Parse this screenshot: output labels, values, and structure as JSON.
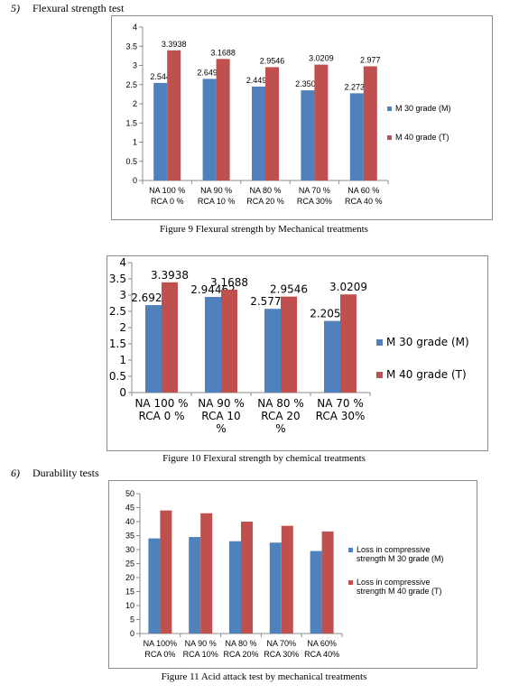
{
  "section5": {
    "num": "5)",
    "text": "Flexural strength test"
  },
  "section6": {
    "num": "6)",
    "text": "Durability tests"
  },
  "colors": {
    "series_m": "#4f81bd",
    "series_t": "#c0504d",
    "grid": "#8c8c8c"
  },
  "figures": [
    {
      "caption": "Figure 9 Flexural strength by Mechanical treatments"
    },
    {
      "caption": "Figure 10 Flexural strength by chemical treatments"
    },
    {
      "caption": "Figure 11 Acid attack test by mechanical treatments"
    }
  ],
  "chart_data": [
    {
      "type": "bar",
      "title": "",
      "categories": [
        [
          "NA 100 %",
          "RCA 0 %"
        ],
        [
          "NA 90 %",
          "RCA 10 %"
        ],
        [
          "NA 80 %",
          "RCA 20 %"
        ],
        [
          "NA 70 %",
          "RCA 30%"
        ],
        [
          "NA 60 %",
          "RCA 40 %"
        ]
      ],
      "series": [
        {
          "name": "M 30 grade (M)",
          "values": [
            2.544,
            2.6496,
            2.4492,
            2.3504,
            2.2739
          ],
          "labels": [
            "2.544",
            "2.6496",
            "2.4492",
            "2.3504",
            "2.2739"
          ]
        },
        {
          "name": "M 40 grade (T)",
          "values": [
            3.3938,
            3.1688,
            2.9546,
            3.0209,
            2.977
          ],
          "labels": [
            "3.3938",
            "3.1688",
            "2.9546",
            "3.0209",
            "2.977"
          ]
        }
      ],
      "ylim": [
        0,
        4
      ],
      "yticks": [
        "0",
        "0.5",
        "1",
        "1.5",
        "2",
        "2.5",
        "3",
        "3.5",
        "4"
      ],
      "legend": "right"
    },
    {
      "type": "bar",
      "title": "",
      "categories": [
        [
          "NA 100 %",
          "RCA 0 %"
        ],
        [
          "NA 90 %",
          "RCA 10",
          "%"
        ],
        [
          "NA 80 %",
          "RCA 20",
          "%"
        ],
        [
          "NA 70 %",
          "RCA 30%"
        ]
      ],
      "series": [
        {
          "name": "M 30 grade (M)",
          "values": [
            2.69216,
            2.94462,
            2.57744,
            2.20528
          ],
          "labels": [
            "2.69216",
            "2.94462",
            "2.57744",
            "2.20528"
          ]
        },
        {
          "name": "M 40 grade (T)",
          "values": [
            3.3938,
            3.1688,
            2.9546,
            3.0209
          ],
          "labels": [
            "3.3938",
            "3.1688",
            "2.9546",
            "3.0209"
          ]
        }
      ],
      "ylim": [
        0,
        4
      ],
      "yticks": [
        "0",
        "0.5",
        "1",
        "1.5",
        "2",
        "2.5",
        "3",
        "3.5",
        "4"
      ],
      "legend": "right"
    },
    {
      "type": "bar",
      "title": "",
      "categories": [
        [
          "NA 100%",
          "RCA 0%"
        ],
        [
          "NA 90 %",
          "RCA 10%"
        ],
        [
          "NA 80 %",
          "RCA 20%"
        ],
        [
          "NA 70%",
          "RCA 30%"
        ],
        [
          "NA 60%",
          "RCA 40%"
        ]
      ],
      "series": [
        {
          "name": "Loss in compressive strength M 30 grade (M)",
          "name_lines": [
            "Loss in compressive",
            "strength M 30 grade (M)"
          ],
          "values": [
            34,
            34.5,
            33,
            32.5,
            29.5
          ]
        },
        {
          "name": "Loss in compressive strength M 40 grade (T)",
          "name_lines": [
            "Loss in compressive",
            "strength M 40 grade (T)"
          ],
          "values": [
            44,
            43,
            40,
            38.5,
            36.5
          ]
        }
      ],
      "ylim": [
        0,
        50
      ],
      "yticks": [
        "0",
        "5",
        "10",
        "15",
        "20",
        "25",
        "30",
        "35",
        "40",
        "45",
        "50"
      ],
      "legend": "right"
    }
  ]
}
